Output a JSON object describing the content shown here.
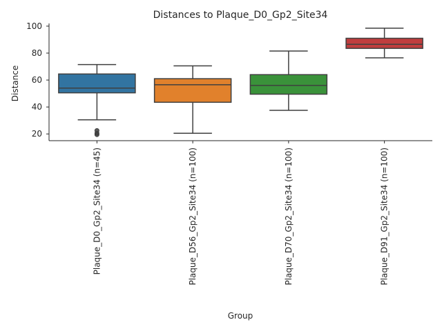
{
  "chart_data": {
    "type": "box",
    "title": "Distances to Plaque_D0_Gp2_Site34",
    "xlabel": "Group",
    "ylabel": "Distance",
    "ylim": [
      15,
      102
    ],
    "yticks": [
      20,
      40,
      60,
      80,
      100
    ],
    "grid": false,
    "legend": "none",
    "categories": [
      "Plaque_D0_Gp2_Site34 (n=45)",
      "Plaque_D56_Gp2_Site34 (n=100)",
      "Plaque_D70_Gp2_Site34 (n=100)",
      "Plaque_D91_Gp2_Site34 (n=100)"
    ],
    "series": [
      {
        "whisker_low": 30.5,
        "q1": 50.5,
        "median": 54,
        "q3": 64.5,
        "whisker_high": 71.5,
        "outliers": [
          22.5,
          20.5,
          19.5
        ],
        "color": "#3274a1"
      },
      {
        "whisker_low": 20.5,
        "q1": 43.5,
        "median": 56.5,
        "q3": 61,
        "whisker_high": 70.5,
        "outliers": [],
        "color": "#e1812c"
      },
      {
        "whisker_low": 37.5,
        "q1": 49.5,
        "median": 56,
        "q3": 64,
        "whisker_high": 81.5,
        "outliers": [],
        "color": "#3a923a"
      },
      {
        "whisker_low": 76.5,
        "q1": 83.5,
        "median": 86.5,
        "q3": 91,
        "whisker_high": 98.5,
        "outliers": [],
        "color": "#c03d3e"
      }
    ]
  }
}
